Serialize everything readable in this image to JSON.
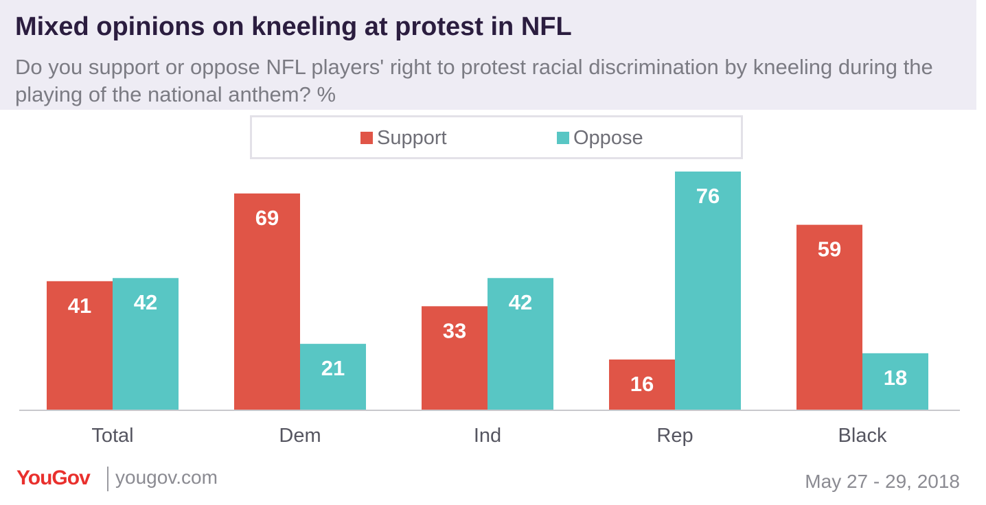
{
  "header": {
    "title": "Mixed opinions on kneeling at protest in NFL",
    "subtitle": "Do you support or oppose NFL players' right to protest racial discrimination by kneeling during the playing of the national anthem? %"
  },
  "chart_data": {
    "type": "bar",
    "categories": [
      "Total",
      "Dem",
      "Ind",
      "Rep",
      "Black"
    ],
    "series": [
      {
        "name": "Support",
        "values": [
          41,
          69,
          33,
          16,
          59
        ],
        "color": "#e05547"
      },
      {
        "name": "Oppose",
        "values": [
          42,
          21,
          42,
          76,
          18
        ],
        "color": "#58c6c4"
      }
    ],
    "ylim": [
      0,
      76
    ],
    "legend": "top-center",
    "grid": false
  },
  "footer": {
    "brand": "YouGov",
    "site": "yougov.com",
    "date": "May 27 - 29, 2018"
  }
}
